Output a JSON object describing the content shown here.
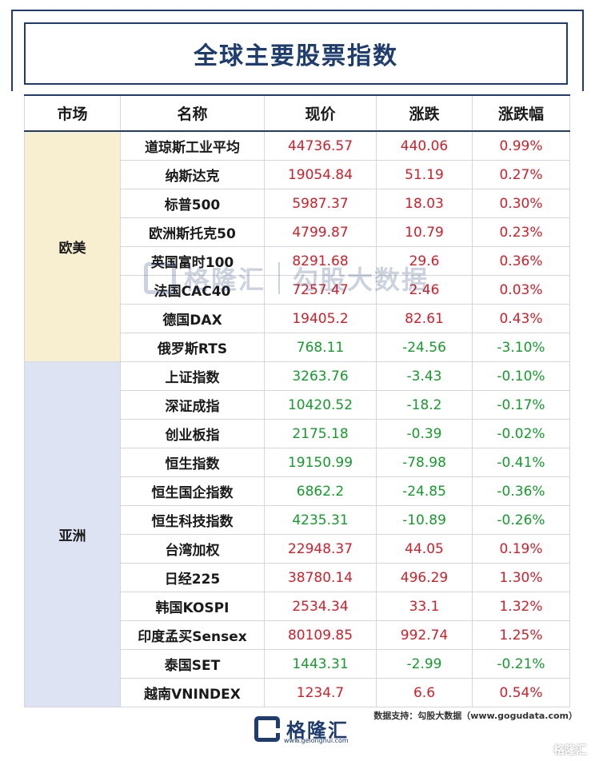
{
  "title": "全球主要股票指数",
  "headers": [
    "市场",
    "名称",
    "现价",
    "涨跌",
    "涨跌幅"
  ],
  "markets": [
    {
      "name": "欧美",
      "rows": [
        {
          "name": "道琼斯工业平均",
          "price": "44736.57",
          "change": "440.06",
          "pct": "0.99%",
          "dir": "up"
        },
        {
          "name": "纳斯达克",
          "price": "19054.84",
          "change": "51.19",
          "pct": "0.27%",
          "dir": "up"
        },
        {
          "name": "标普500",
          "price": "5987.37",
          "change": "18.03",
          "pct": "0.30%",
          "dir": "up"
        },
        {
          "name": "欧洲斯托克50",
          "price": "4799.87",
          "change": "10.79",
          "pct": "0.23%",
          "dir": "up"
        },
        {
          "name": "英国富时100",
          "price": "8291.68",
          "change": "29.6",
          "pct": "0.36%",
          "dir": "up"
        },
        {
          "name": "法国CAC40",
          "price": "7257.47",
          "change": "2.46",
          "pct": "0.03%",
          "dir": "up"
        },
        {
          "name": "德国DAX",
          "price": "19405.2",
          "change": "82.61",
          "pct": "0.43%",
          "dir": "up"
        },
        {
          "name": "俄罗斯RTS",
          "price": "768.11",
          "change": "-24.56",
          "pct": "-3.10%",
          "dir": "down"
        }
      ]
    },
    {
      "name": "亚洲",
      "rows": [
        {
          "name": "上证指数",
          "price": "3263.76",
          "change": "-3.43",
          "pct": "-0.10%",
          "dir": "down"
        },
        {
          "name": "深证成指",
          "price": "10420.52",
          "change": "-18.2",
          "pct": "-0.17%",
          "dir": "down"
        },
        {
          "name": "创业板指",
          "price": "2175.18",
          "change": "-0.39",
          "pct": "-0.02%",
          "dir": "down"
        },
        {
          "name": "恒生指数",
          "price": "19150.99",
          "change": "-78.98",
          "pct": "-0.41%",
          "dir": "down"
        },
        {
          "name": "恒生国企指数",
          "price": "6862.2",
          "change": "-24.85",
          "pct": "-0.36%",
          "dir": "down"
        },
        {
          "name": "恒生科技指数",
          "price": "4235.31",
          "change": "-10.89",
          "pct": "-0.26%",
          "dir": "down"
        },
        {
          "name": "台湾加权",
          "price": "22948.37",
          "change": "44.05",
          "pct": "0.19%",
          "dir": "up"
        },
        {
          "name": "日经225",
          "price": "38780.14",
          "change": "496.29",
          "pct": "1.30%",
          "dir": "up"
        },
        {
          "name": "韩国KOSPI",
          "price": "2534.34",
          "change": "33.1",
          "pct": "1.32%",
          "dir": "up"
        },
        {
          "name": "印度孟买Sensex",
          "price": "80109.85",
          "change": "992.74",
          "pct": "1.25%",
          "dir": "up"
        },
        {
          "name": "泰国SET",
          "price": "1443.31",
          "change": "-2.99",
          "pct": "-0.21%",
          "dir": "down"
        },
        {
          "name": "越南VNINDEX",
          "price": "1234.7",
          "change": "6.6",
          "pct": "0.54%",
          "dir": "up"
        }
      ]
    }
  ],
  "watermark": {
    "brand": "格隆汇",
    "partner": "勾股大数据",
    "brand_url": "www.gelonghui.com",
    "partner_url": "www.gogudata.com"
  },
  "footer": {
    "source": "数据支持：勾股大数据（www.gogudata.com）",
    "brand": "格隆汇",
    "brand_url": "www.gelonghui.com",
    "corner": "格隆汇"
  },
  "colors": {
    "up": "#d11f2a",
    "down": "#179a2e",
    "brand": "#1e3c6e",
    "eu_bg": "#f7efcf",
    "asia_bg": "#dde3f3"
  }
}
